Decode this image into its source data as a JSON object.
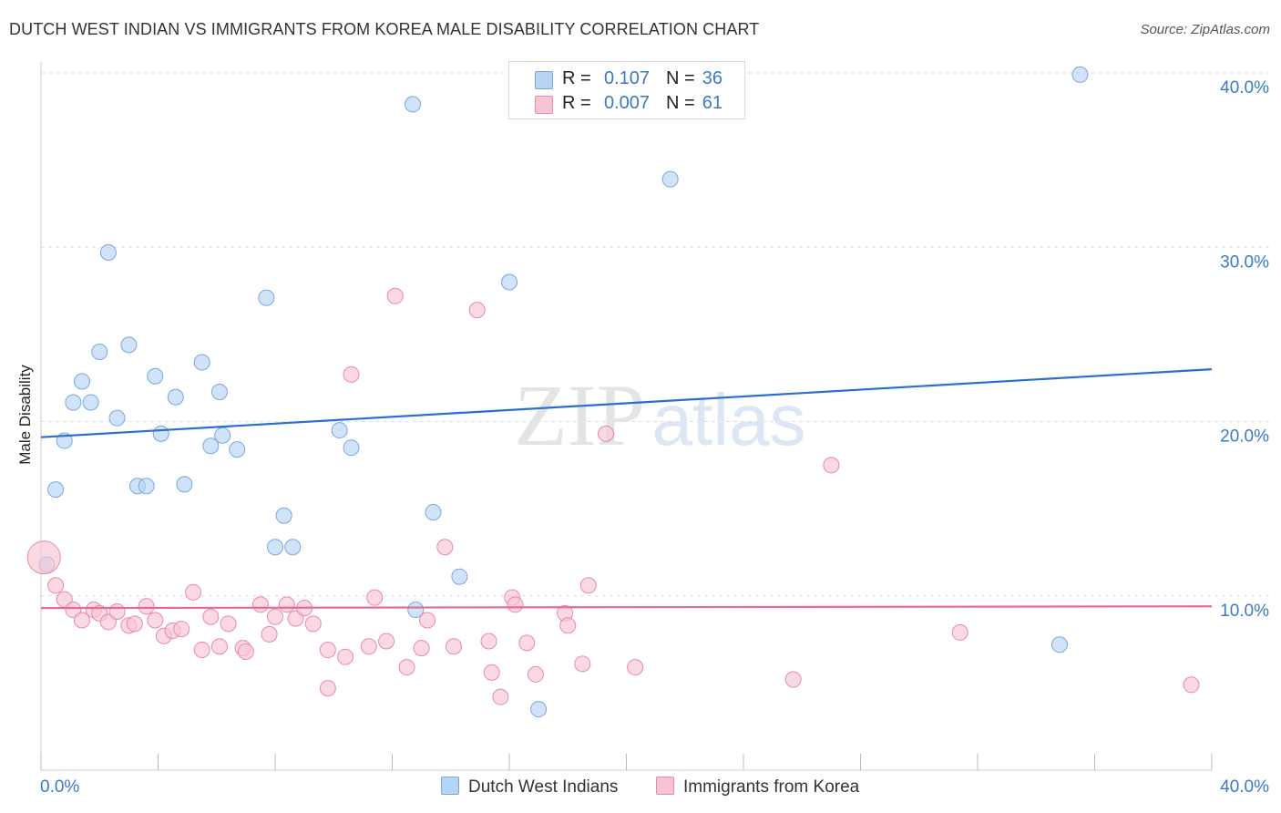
{
  "title": "DUTCH WEST INDIAN VS IMMIGRANTS FROM KOREA MALE DISABILITY CORRELATION CHART",
  "source": "Source: ZipAtlas.com",
  "watermark": {
    "zip": "ZIP",
    "atlas": "atlas"
  },
  "legend": {
    "rows": [
      {
        "r_label": "R =",
        "r_value": "0.107",
        "n_label": "N =",
        "n_value": "36",
        "color": "#a8c8f0"
      },
      {
        "r_label": "R =",
        "r_value": "0.007",
        "n_label": "N =",
        "n_value": "61",
        "color": "#f8b4c8"
      }
    ]
  },
  "colors": {
    "blue_fill": "#b8d4f4",
    "blue_stroke": "#7aa6de",
    "blue_line": "#2a6fcf",
    "pink_fill": "#f8c4d4",
    "pink_stroke": "#e88aa8",
    "pink_line": "#e56b95",
    "axis_text": "#3a78c8",
    "grid": "#dddddd"
  },
  "chart_data": {
    "type": "scatter",
    "title": "DUTCH WEST INDIAN VS IMMIGRANTS FROM KOREA MALE DISABILITY CORRELATION CHART",
    "xlabel": "",
    "ylabel": "Male Disability",
    "xlim": [
      0,
      40
    ],
    "ylim": [
      0,
      40
    ],
    "x_tick_labels": [
      "0.0%",
      "40.0%"
    ],
    "y_ticks": [
      10,
      20,
      30,
      40
    ],
    "y_tick_labels": [
      "10.0%",
      "20.0%",
      "30.0%",
      "40.0%"
    ],
    "grid": true,
    "legend_position": "top-center",
    "series": [
      {
        "name": "Dutch West Indians",
        "color": "#b8d4f4",
        "trend": {
          "x": [
            0,
            40
          ],
          "y": [
            19.1,
            23.0
          ]
        },
        "points": [
          [
            0.2,
            11.8
          ],
          [
            0.5,
            16.1
          ],
          [
            0.8,
            18.9
          ],
          [
            1.1,
            21.1
          ],
          [
            1.4,
            22.3
          ],
          [
            1.7,
            21.1
          ],
          [
            2.0,
            24.0
          ],
          [
            2.3,
            29.7
          ],
          [
            2.6,
            20.2
          ],
          [
            3.0,
            24.4
          ],
          [
            3.3,
            16.3
          ],
          [
            3.6,
            16.3
          ],
          [
            3.9,
            22.6
          ],
          [
            4.1,
            19.3
          ],
          [
            4.6,
            21.4
          ],
          [
            4.9,
            16.4
          ],
          [
            5.5,
            23.4
          ],
          [
            5.8,
            18.6
          ],
          [
            6.1,
            21.7
          ],
          [
            6.2,
            19.2
          ],
          [
            6.7,
            18.4
          ],
          [
            7.7,
            27.1
          ],
          [
            8.0,
            12.8
          ],
          [
            8.3,
            14.6
          ],
          [
            8.6,
            12.8
          ],
          [
            10.2,
            19.5
          ],
          [
            10.6,
            18.5
          ],
          [
            12.7,
            38.2
          ],
          [
            12.8,
            9.2
          ],
          [
            13.4,
            14.8
          ],
          [
            14.3,
            11.1
          ],
          [
            16.0,
            28.0
          ],
          [
            17.0,
            3.5
          ],
          [
            21.5,
            33.9
          ],
          [
            34.8,
            7.2
          ],
          [
            35.5,
            39.9
          ]
        ]
      },
      {
        "name": "Immigrants from Korea",
        "color": "#f8c4d4",
        "trend": {
          "x": [
            0,
            40
          ],
          "y": [
            9.3,
            9.4
          ]
        },
        "points": [
          [
            0.1,
            12.2,
            "big"
          ],
          [
            0.5,
            10.6
          ],
          [
            0.8,
            9.8
          ],
          [
            1.1,
            9.2
          ],
          [
            1.4,
            8.6
          ],
          [
            1.8,
            9.2
          ],
          [
            2.0,
            9.0
          ],
          [
            2.3,
            8.5
          ],
          [
            2.6,
            9.1
          ],
          [
            3.0,
            8.3
          ],
          [
            3.2,
            8.4
          ],
          [
            3.6,
            9.4
          ],
          [
            3.9,
            8.6
          ],
          [
            4.2,
            7.7
          ],
          [
            4.5,
            8.0
          ],
          [
            4.8,
            8.1
          ],
          [
            5.2,
            10.2
          ],
          [
            5.5,
            6.9
          ],
          [
            5.8,
            8.8
          ],
          [
            6.1,
            7.1
          ],
          [
            6.4,
            8.4
          ],
          [
            6.9,
            7.0
          ],
          [
            7.0,
            6.8
          ],
          [
            7.5,
            9.5
          ],
          [
            7.8,
            7.8
          ],
          [
            8.0,
            8.8
          ],
          [
            8.4,
            9.5
          ],
          [
            8.7,
            8.7
          ],
          [
            9.0,
            9.3
          ],
          [
            9.3,
            8.4
          ],
          [
            9.8,
            6.9
          ],
          [
            9.8,
            4.7
          ],
          [
            10.4,
            6.5
          ],
          [
            10.6,
            22.7
          ],
          [
            11.2,
            7.1
          ],
          [
            11.4,
            9.9
          ],
          [
            11.8,
            7.4
          ],
          [
            12.1,
            27.2
          ],
          [
            12.5,
            5.9
          ],
          [
            13.0,
            7.0
          ],
          [
            13.2,
            8.6
          ],
          [
            13.8,
            12.8
          ],
          [
            14.1,
            7.1
          ],
          [
            14.9,
            26.4
          ],
          [
            15.3,
            7.4
          ],
          [
            15.4,
            5.6
          ],
          [
            15.7,
            4.2
          ],
          [
            16.1,
            9.9
          ],
          [
            16.2,
            9.5
          ],
          [
            16.6,
            7.3
          ],
          [
            16.9,
            5.5
          ],
          [
            17.9,
            9.0
          ],
          [
            18.0,
            8.3
          ],
          [
            18.5,
            6.1
          ],
          [
            18.7,
            10.6
          ],
          [
            19.3,
            19.3
          ],
          [
            20.3,
            5.9
          ],
          [
            25.7,
            5.2
          ],
          [
            27.0,
            17.5
          ],
          [
            31.4,
            7.9
          ],
          [
            39.3,
            4.9
          ]
        ]
      }
    ]
  }
}
